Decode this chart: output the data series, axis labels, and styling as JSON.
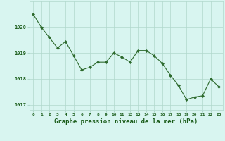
{
  "x": [
    0,
    1,
    2,
    3,
    4,
    5,
    6,
    7,
    8,
    9,
    10,
    11,
    12,
    13,
    14,
    15,
    16,
    17,
    18,
    19,
    20,
    21,
    22,
    23
  ],
  "y": [
    1020.5,
    1020.0,
    1019.6,
    1019.2,
    1019.45,
    1018.9,
    1018.35,
    1018.45,
    1018.65,
    1018.65,
    1019.0,
    1018.85,
    1018.65,
    1019.1,
    1019.1,
    1018.9,
    1018.6,
    1018.15,
    1017.75,
    1017.2,
    1017.3,
    1017.35,
    1018.0,
    1017.7
  ],
  "line_color": "#2d6a2d",
  "marker_color": "#2d6a2d",
  "bg_color": "#d8f5f0",
  "grid_color": "#b0d8cc",
  "xlabel": "Graphe pression niveau de la mer (hPa)",
  "xlabel_color": "#1a5c1a",
  "tick_color": "#1a5c1a",
  "ylim": [
    1016.8,
    1021.0
  ],
  "yticks": [
    1017,
    1018,
    1019,
    1020
  ],
  "xticks": [
    0,
    1,
    2,
    3,
    4,
    5,
    6,
    7,
    8,
    9,
    10,
    11,
    12,
    13,
    14,
    15,
    16,
    17,
    18,
    19,
    20,
    21,
    22,
    23
  ],
  "tick_fontsize": 4.5,
  "xlabel_fontsize": 6.5
}
